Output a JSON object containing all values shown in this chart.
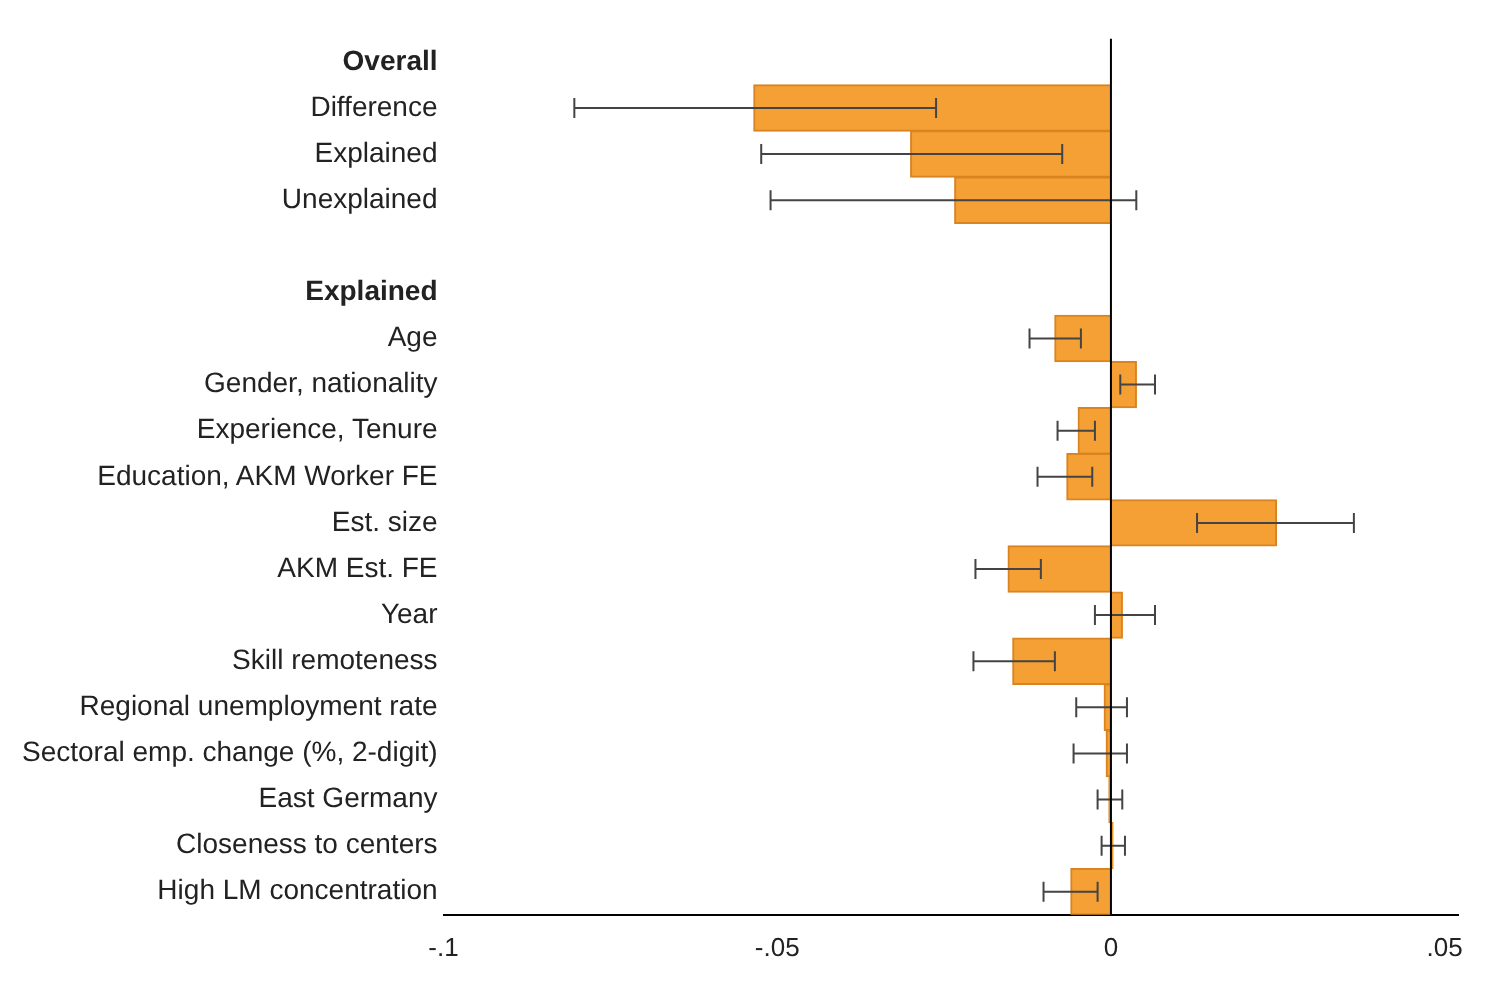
{
  "chart_data": {
    "type": "bar",
    "orientation": "horizontal",
    "categories": [
      "Overall",
      "Difference",
      "Explained",
      "Unexplained",
      null,
      "Explained",
      "Age",
      "Gender, nationality",
      "Experience, Tenure",
      "Education, AKM Worker FE",
      "Est. size",
      "AKM Est. FE",
      "Year",
      "Skill remoteness",
      "Regional unemployment rate",
      "Sectoral emp. change (%, 2-digit)",
      "East Germany",
      "Closeness to centers",
      "High LM concentration"
    ],
    "values": [
      null,
      -0.0535,
      -0.03,
      -0.0234,
      null,
      null,
      -0.0084,
      0.0038,
      -0.0049,
      -0.0066,
      0.0248,
      -0.0154,
      0.0017,
      -0.0147,
      -0.001,
      -0.0007,
      -0.0003,
      0.0003,
      -0.006
    ],
    "errors": [
      null,
      [
        -0.0804,
        -0.0262
      ],
      [
        -0.0524,
        -0.0073
      ],
      [
        -0.051,
        0.0038
      ],
      null,
      null,
      [
        -0.0122,
        -0.0045
      ],
      [
        0.0014,
        0.0066
      ],
      [
        -0.008,
        -0.0024
      ],
      [
        -0.011,
        -0.0028
      ],
      [
        0.0129,
        0.0364
      ],
      [
        -0.0203,
        -0.0105
      ],
      [
        -0.0024,
        0.0066
      ],
      [
        -0.0206,
        -0.0084
      ],
      [
        -0.0052,
        0.0024
      ],
      [
        -0.0056,
        0.0024
      ],
      [
        -0.002,
        0.0017
      ],
      [
        -0.0014,
        0.0021
      ],
      [
        -0.0101,
        -0.002
      ]
    ],
    "color": "#f5a035",
    "xlim": [
      -0.1,
      0.052
    ],
    "xticks": [
      {
        "value": -0.1,
        "label": "-.1"
      },
      {
        "value": -0.05,
        "label": "-.05"
      },
      {
        "value": 0,
        "label": "0"
      },
      {
        "value": 0.05,
        "label": ".05"
      }
    ],
    "ref_lines": [
      {
        "axis": "x",
        "value": 0,
        "color": "#000000"
      }
    ],
    "grid": false,
    "legend": false
  }
}
